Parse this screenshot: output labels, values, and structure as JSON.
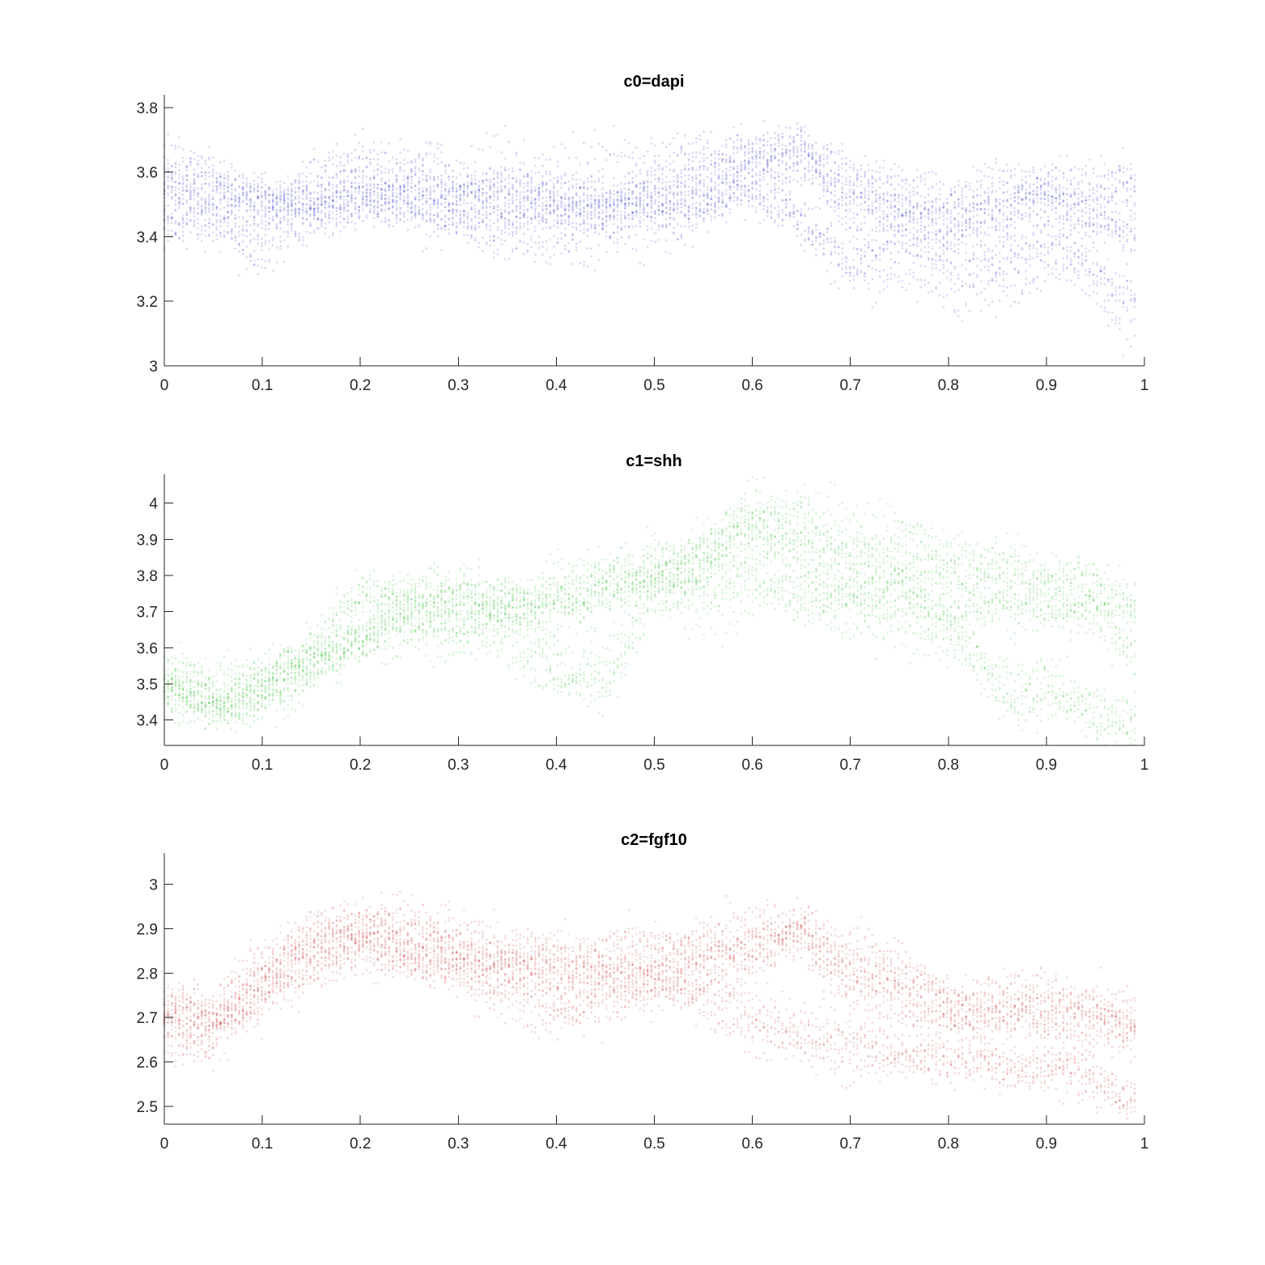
{
  "chart_data": [
    {
      "type": "scatter",
      "title": "c0=dapi",
      "xlabel": "",
      "ylabel": "",
      "xlim": [
        0,
        1
      ],
      "ylim": [
        3.0,
        3.84
      ],
      "xticks": [
        0,
        0.1,
        0.2,
        0.3,
        0.4,
        0.5,
        0.6,
        0.7,
        0.8,
        0.9,
        1
      ],
      "xtick_labels": [
        "0",
        "0.1",
        "0.2",
        "0.3",
        "0.4",
        "0.5",
        "0.6",
        "0.7",
        "0.8",
        "0.9",
        "1"
      ],
      "yticks": [
        3.0,
        3.2,
        3.4,
        3.6,
        3.8
      ],
      "ytick_labels": [
        "3",
        "3.2",
        "3.4",
        "3.6",
        "3.8"
      ],
      "color": "#2121c4",
      "grid": false,
      "legend": "none",
      "series": [
        {
          "x": [
            0.0,
            0.05,
            0.1,
            0.15,
            0.2,
            0.25,
            0.3,
            0.35,
            0.4,
            0.45,
            0.5,
            0.55,
            0.6,
            0.65,
            0.7,
            0.75,
            0.8,
            0.85,
            0.9,
            0.95,
            0.98
          ],
          "y": [
            3.55,
            3.52,
            3.5,
            3.48,
            3.52,
            3.55,
            3.5,
            3.52,
            3.5,
            3.5,
            3.52,
            3.55,
            3.62,
            3.65,
            3.5,
            3.48,
            3.42,
            3.45,
            3.5,
            3.52,
            3.55
          ]
        },
        {
          "x": [
            0.0,
            0.05,
            0.1,
            0.15,
            0.2,
            0.25,
            0.3,
            0.35,
            0.4,
            0.45,
            0.5,
            0.55,
            0.6,
            0.65,
            0.7,
            0.75,
            0.8,
            0.85,
            0.9,
            0.95,
            0.98
          ],
          "y": [
            3.45,
            3.45,
            3.42,
            3.5,
            3.55,
            3.52,
            3.48,
            3.45,
            3.45,
            3.42,
            3.48,
            3.5,
            3.55,
            3.45,
            3.3,
            3.35,
            3.3,
            3.3,
            3.35,
            3.3,
            3.2
          ]
        },
        {
          "x": [
            0.0,
            0.05,
            0.1,
            0.15,
            0.2,
            0.25,
            0.3,
            0.35,
            0.4,
            0.45,
            0.5,
            0.55,
            0.6,
            0.65,
            0.7,
            0.75,
            0.8,
            0.85,
            0.9,
            0.95,
            0.98
          ],
          "y": [
            3.6,
            3.58,
            3.55,
            3.55,
            3.6,
            3.6,
            3.55,
            3.55,
            3.55,
            3.55,
            3.55,
            3.6,
            3.65,
            3.68,
            3.6,
            3.55,
            3.5,
            3.55,
            3.55,
            3.5,
            3.45
          ]
        }
      ]
    },
    {
      "type": "scatter",
      "title": "c1=shh",
      "xlabel": "",
      "ylabel": "",
      "xlim": [
        0,
        1
      ],
      "ylim": [
        3.33,
        4.08
      ],
      "xticks": [
        0,
        0.1,
        0.2,
        0.3,
        0.4,
        0.5,
        0.6,
        0.7,
        0.8,
        0.9,
        1
      ],
      "xtick_labels": [
        "0",
        "0.1",
        "0.2",
        "0.3",
        "0.4",
        "0.5",
        "0.6",
        "0.7",
        "0.8",
        "0.9",
        "1"
      ],
      "yticks": [
        3.4,
        3.5,
        3.6,
        3.7,
        3.8,
        3.9,
        4.0
      ],
      "ytick_labels": [
        "3.4",
        "3.5",
        "3.6",
        "3.7",
        "3.8",
        "3.9",
        "4"
      ],
      "color": "#1fb81f",
      "grid": false,
      "legend": "none",
      "series": [
        {
          "x": [
            0.0,
            0.05,
            0.1,
            0.15,
            0.2,
            0.25,
            0.3,
            0.35,
            0.4,
            0.45,
            0.5,
            0.55,
            0.6,
            0.65,
            0.7,
            0.75,
            0.8,
            0.85,
            0.9,
            0.95,
            0.98
          ],
          "y": [
            3.5,
            3.46,
            3.48,
            3.55,
            3.65,
            3.7,
            3.7,
            3.72,
            3.75,
            3.78,
            3.82,
            3.88,
            3.95,
            3.95,
            3.88,
            3.88,
            3.82,
            3.8,
            3.75,
            3.75,
            3.72
          ]
        },
        {
          "x": [
            0.0,
            0.05,
            0.1,
            0.15,
            0.2,
            0.25,
            0.3,
            0.35,
            0.4,
            0.45,
            0.5,
            0.55,
            0.6,
            0.65,
            0.7,
            0.75,
            0.8,
            0.85,
            0.9,
            0.95,
            0.98
          ],
          "y": [
            3.48,
            3.44,
            3.46,
            3.52,
            3.6,
            3.68,
            3.68,
            3.7,
            3.72,
            3.75,
            3.78,
            3.82,
            3.9,
            3.85,
            3.8,
            3.78,
            3.7,
            3.7,
            3.72,
            3.72,
            3.6
          ]
        },
        {
          "x": [
            0.0,
            0.05,
            0.1,
            0.15,
            0.2,
            0.25,
            0.3,
            0.35,
            0.4,
            0.45,
            0.5,
            0.55,
            0.6,
            0.65,
            0.7,
            0.75,
            0.8,
            0.85,
            0.9,
            0.95,
            0.98
          ],
          "y": [
            3.5,
            3.47,
            3.5,
            3.58,
            3.7,
            3.72,
            3.72,
            3.68,
            3.55,
            3.52,
            3.75,
            3.72,
            3.8,
            3.75,
            3.72,
            3.7,
            3.65,
            3.5,
            3.5,
            3.4,
            3.4
          ]
        }
      ]
    },
    {
      "type": "scatter",
      "title": "c2=fgf10",
      "xlabel": "",
      "ylabel": "",
      "xlim": [
        0,
        1
      ],
      "ylim": [
        2.46,
        3.07
      ],
      "xticks": [
        0,
        0.1,
        0.2,
        0.3,
        0.4,
        0.5,
        0.6,
        0.7,
        0.8,
        0.9,
        1
      ],
      "xtick_labels": [
        "0",
        "0.1",
        "0.2",
        "0.3",
        "0.4",
        "0.5",
        "0.6",
        "0.7",
        "0.8",
        "0.9",
        "1"
      ],
      "yticks": [
        2.5,
        2.6,
        2.7,
        2.8,
        2.9,
        3.0
      ],
      "ytick_labels": [
        "2.5",
        "2.6",
        "2.7",
        "2.8",
        "2.9",
        "3"
      ],
      "color": "#c41f1f",
      "grid": false,
      "legend": "none",
      "series": [
        {
          "x": [
            0.0,
            0.05,
            0.1,
            0.15,
            0.2,
            0.25,
            0.3,
            0.35,
            0.4,
            0.45,
            0.5,
            0.55,
            0.6,
            0.65,
            0.7,
            0.75,
            0.8,
            0.85,
            0.9,
            0.95,
            0.98
          ],
          "y": [
            2.7,
            2.68,
            2.78,
            2.85,
            2.88,
            2.86,
            2.82,
            2.8,
            2.8,
            2.8,
            2.8,
            2.82,
            2.85,
            2.88,
            2.8,
            2.76,
            2.72,
            2.72,
            2.7,
            2.68,
            2.65
          ]
        },
        {
          "x": [
            0.0,
            0.05,
            0.1,
            0.15,
            0.2,
            0.25,
            0.3,
            0.35,
            0.4,
            0.45,
            0.5,
            0.55,
            0.6,
            0.65,
            0.7,
            0.75,
            0.8,
            0.85,
            0.9,
            0.95,
            0.98
          ],
          "y": [
            2.68,
            2.66,
            2.76,
            2.83,
            2.86,
            2.84,
            2.8,
            2.78,
            2.72,
            2.75,
            2.78,
            2.75,
            2.7,
            2.65,
            2.62,
            2.62,
            2.6,
            2.6,
            2.58,
            2.55,
            2.52
          ]
        },
        {
          "x": [
            0.0,
            0.05,
            0.1,
            0.15,
            0.2,
            0.25,
            0.3,
            0.35,
            0.4,
            0.45,
            0.5,
            0.55,
            0.6,
            0.65,
            0.7,
            0.75,
            0.8,
            0.85,
            0.9,
            0.95,
            0.98
          ],
          "y": [
            2.72,
            2.7,
            2.8,
            2.88,
            2.9,
            2.88,
            2.84,
            2.82,
            2.82,
            2.82,
            2.82,
            2.85,
            2.88,
            2.9,
            2.78,
            2.75,
            2.7,
            2.7,
            2.72,
            2.7,
            2.68
          ]
        }
      ]
    }
  ]
}
